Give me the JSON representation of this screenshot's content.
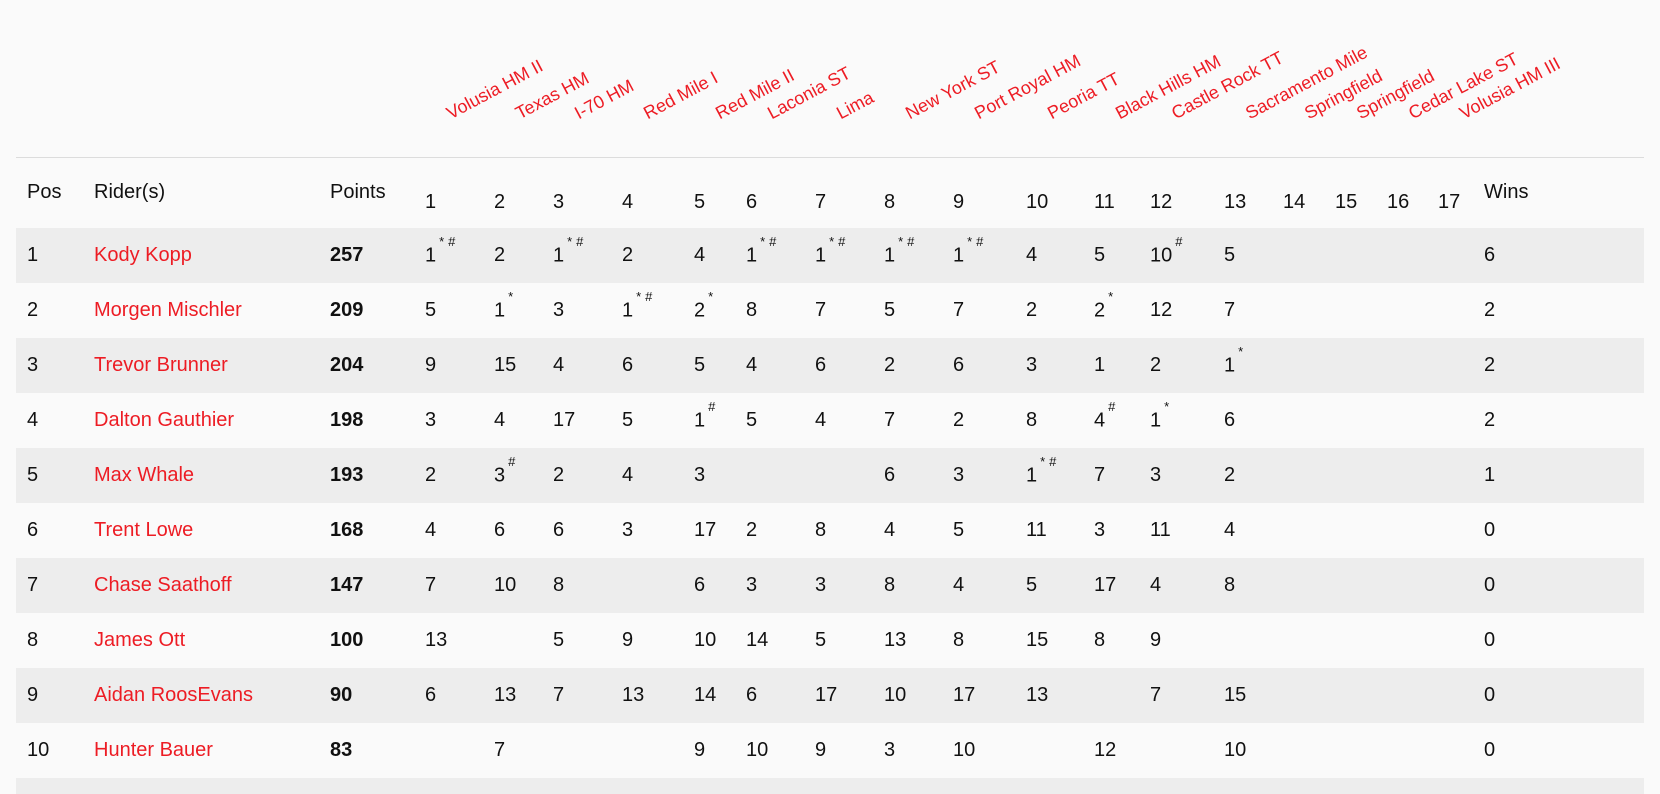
{
  "colors": {
    "accent_red": "#ed1c24",
    "row_stripe": "#ededed",
    "page_background": "#fafafa",
    "header_border": "#dcdcdc"
  },
  "table": {
    "headers": {
      "pos": "Pos",
      "riders": "Rider(s)",
      "points": "Points",
      "wins": "Wins"
    },
    "races": [
      {
        "num": "1",
        "name": "Volusia HM II"
      },
      {
        "num": "2",
        "name": "Texas HM"
      },
      {
        "num": "3",
        "name": "I-70 HM"
      },
      {
        "num": "4",
        "name": "Red Mile I"
      },
      {
        "num": "5",
        "name": "Red Mile II"
      },
      {
        "num": "6",
        "name": "Laconia ST"
      },
      {
        "num": "7",
        "name": "Lima"
      },
      {
        "num": "8",
        "name": "New York ST"
      },
      {
        "num": "9",
        "name": "Port Royal HM"
      },
      {
        "num": "10",
        "name": "Peoria TT"
      },
      {
        "num": "11",
        "name": "Black Hills HM"
      },
      {
        "num": "12",
        "name": "Castle Rock TT"
      },
      {
        "num": "13",
        "name": "Sacramento Mile"
      },
      {
        "num": "14",
        "name": "Springfield"
      },
      {
        "num": "15",
        "name": "Springfield"
      },
      {
        "num": "16",
        "name": "Cedar Lake ST"
      },
      {
        "num": "17",
        "name": "Volusia HM III"
      }
    ],
    "rows": [
      {
        "pos": "1",
        "rider": "Kody Kopp",
        "points": "257",
        "results": [
          "1*#",
          "2",
          "1*#",
          "2",
          "4",
          "1*#",
          "1*#",
          "1*#",
          "1*#",
          "4",
          "5",
          "10#",
          "5",
          "",
          "",
          "",
          ""
        ],
        "wins": "6"
      },
      {
        "pos": "2",
        "rider": "Morgen Mischler",
        "points": "209",
        "results": [
          "5",
          "1*",
          "3",
          "1*#",
          "2*",
          "8",
          "7",
          "5",
          "7",
          "2",
          "2*",
          "12",
          "7",
          "",
          "",
          "",
          ""
        ],
        "wins": "2"
      },
      {
        "pos": "3",
        "rider": "Trevor Brunner",
        "points": "204",
        "results": [
          "9",
          "15",
          "4",
          "6",
          "5",
          "4",
          "6",
          "2",
          "6",
          "3",
          "1",
          "2",
          "1*",
          "",
          "",
          "",
          ""
        ],
        "wins": "2"
      },
      {
        "pos": "4",
        "rider": "Dalton Gauthier",
        "points": "198",
        "results": [
          "3",
          "4",
          "17",
          "5",
          "1#",
          "5",
          "4",
          "7",
          "2",
          "8",
          "4#",
          "1*",
          "6",
          "",
          "",
          "",
          ""
        ],
        "wins": "2"
      },
      {
        "pos": "5",
        "rider": "Max Whale",
        "points": "193",
        "results": [
          "2",
          "3#",
          "2",
          "4",
          "3",
          "",
          "",
          "6",
          "3",
          "1*#",
          "7",
          "3",
          "2",
          "",
          "",
          "",
          ""
        ],
        "wins": "1"
      },
      {
        "pos": "6",
        "rider": "Trent Lowe",
        "points": "168",
        "results": [
          "4",
          "6",
          "6",
          "3",
          "17",
          "2",
          "8",
          "4",
          "5",
          "11",
          "3",
          "11",
          "4",
          "",
          "",
          "",
          ""
        ],
        "wins": "0"
      },
      {
        "pos": "7",
        "rider": "Chase Saathoff",
        "points": "147",
        "results": [
          "7",
          "10",
          "8",
          "",
          "6",
          "3",
          "3",
          "8",
          "4",
          "5",
          "17",
          "4",
          "8",
          "",
          "",
          "",
          ""
        ],
        "wins": "0"
      },
      {
        "pos": "8",
        "rider": "James Ott",
        "points": "100",
        "results": [
          "13",
          "",
          "5",
          "9",
          "10",
          "14",
          "5",
          "13",
          "8",
          "15",
          "8",
          "9",
          "",
          "",
          "",
          "",
          ""
        ],
        "wins": "0"
      },
      {
        "pos": "9",
        "rider": "Aidan RoosEvans",
        "points": "90",
        "results": [
          "6",
          "13",
          "7",
          "13",
          "14",
          "6",
          "17",
          "10",
          "17",
          "13",
          "",
          "7",
          "15",
          "",
          "",
          "",
          ""
        ],
        "wins": "0"
      },
      {
        "pos": "10",
        "rider": "Hunter Bauer",
        "points": "83",
        "results": [
          "",
          "7",
          "",
          "",
          "9",
          "10",
          "9",
          "3",
          "10",
          "",
          "12",
          "",
          "10",
          "",
          "",
          "",
          ""
        ],
        "wins": "0"
      }
    ]
  }
}
